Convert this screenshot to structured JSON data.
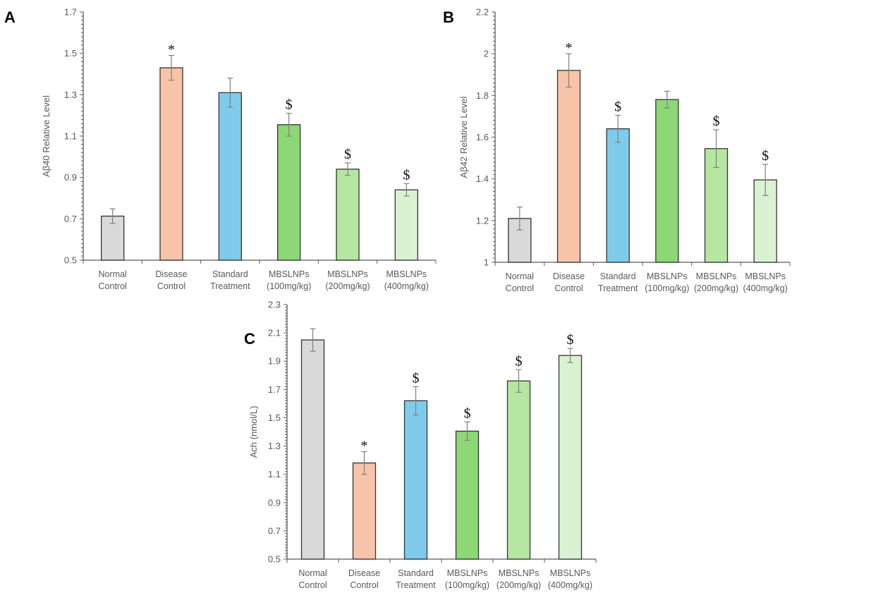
{
  "chart_data": [
    {
      "type": "bar",
      "panel_label": "A",
      "ylabel": "Aβ40 Relative Level",
      "ylim": [
        0.5,
        1.7
      ],
      "yticks": [
        "0.5",
        "0.7",
        "0.9",
        "1.1",
        "1.3",
        "1.5",
        "1.7"
      ],
      "categories": [
        [
          "Normal",
          "Control"
        ],
        [
          "Disease",
          "Control"
        ],
        [
          "Standard",
          "Treatment"
        ],
        [
          "MBSLNPs",
          "(100mg/kg)"
        ],
        [
          "MBSLNPs",
          "(200mg/kg)"
        ],
        [
          "MBSLNPs",
          "(400mg/kg)"
        ]
      ],
      "values": [
        0.713,
        1.43,
        1.31,
        1.155,
        0.94,
        0.84
      ],
      "errors": [
        0.035,
        0.06,
        0.07,
        0.055,
        0.03,
        0.03
      ],
      "annotations": [
        "",
        "*",
        "",
        "$",
        "$",
        "$"
      ],
      "grid": false
    },
    {
      "type": "bar",
      "panel_label": "B",
      "ylabel": "Aβ42 Relative Level",
      "ylim": [
        1.0,
        2.2
      ],
      "yticks": [
        "1",
        "1.2",
        "1.4",
        "1.6",
        "1.8",
        "2",
        "2.2"
      ],
      "categories": [
        [
          "Normal",
          "Control"
        ],
        [
          "Disease",
          "Control"
        ],
        [
          "Standard",
          "Treatment"
        ],
        [
          "MBSLNPs",
          "(100mg/kg)"
        ],
        [
          "MBSLNPs",
          "(200mg/kg)"
        ],
        [
          "MBSLNPs",
          "(400mg/kg)"
        ]
      ],
      "values": [
        1.21,
        1.92,
        1.64,
        1.78,
        1.545,
        1.395
      ],
      "errors": [
        0.055,
        0.08,
        0.065,
        0.04,
        0.09,
        0.075
      ],
      "annotations": [
        "",
        "*",
        "$",
        "",
        "$",
        "$"
      ],
      "grid": false
    },
    {
      "type": "bar",
      "panel_label": "C",
      "ylabel": "Ach (nmol/L)",
      "ylim": [
        0.5,
        2.3
      ],
      "yticks": [
        "0.5",
        "0.7",
        "0.9",
        "1.1",
        "1.3",
        "1.5",
        "1.7",
        "1.9",
        "2.1",
        "2.3"
      ],
      "categories": [
        [
          "Normal",
          "Control"
        ],
        [
          "Disease",
          "Control"
        ],
        [
          "Standard",
          "Treatment"
        ],
        [
          "MBSLNPs",
          "(100mg/kg)"
        ],
        [
          "MBSLNPs",
          "(200mg/kg)"
        ],
        [
          "MBSLNPs",
          "(400mg/kg)"
        ]
      ],
      "values": [
        2.05,
        1.18,
        1.62,
        1.405,
        1.76,
        1.94
      ],
      "errors": [
        0.08,
        0.08,
        0.1,
        0.065,
        0.08,
        0.05
      ],
      "annotations": [
        "",
        "*",
        "$",
        "$",
        "$",
        "$"
      ],
      "grid": false
    }
  ],
  "colors": {
    "bars": [
      "#d9d9d9",
      "#f7c4a9",
      "#7fcbec",
      "#8cd874",
      "#b5e6a2",
      "#daf2d2"
    ],
    "bar_outline": "#333333",
    "error_bar": "#7f7f7f",
    "axis": "#595959"
  }
}
